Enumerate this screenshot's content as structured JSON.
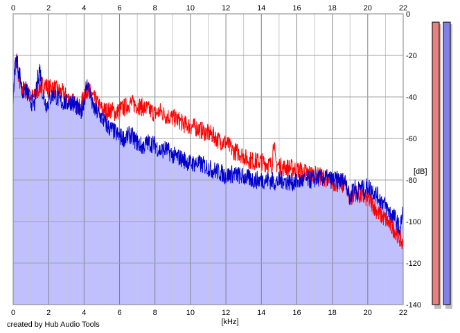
{
  "credit": "created by Hub Audio Tools",
  "chart_data": {
    "type": "line",
    "title": "",
    "xlabel": "[kHz]",
    "ylabel": "[dB]",
    "xlim": [
      0,
      22
    ],
    "ylim": [
      -140,
      0
    ],
    "x_ticks": [
      0,
      2,
      4,
      6,
      8,
      10,
      12,
      14,
      16,
      18,
      20,
      22
    ],
    "y_ticks": [
      0,
      -20,
      -40,
      -60,
      -80,
      -100,
      -120,
      -140
    ],
    "grid": true,
    "fill_color": "#c0c0ff",
    "series": [
      {
        "color": "#ff0000",
        "x": [
          0,
          0.1,
          0.2,
          0.3,
          0.4,
          0.5,
          0.7,
          1.0,
          1.2,
          1.5,
          1.8,
          2.0,
          2.2,
          2.5,
          2.8,
          3.0,
          3.3,
          3.6,
          3.8,
          4.0,
          4.2,
          4.5,
          4.8,
          5.0,
          5.3,
          5.5,
          5.8,
          6.0,
          6.3,
          6.6,
          7.0,
          7.3,
          7.6,
          8.0,
          8.3,
          8.6,
          9.0,
          9.3,
          9.6,
          10.0,
          10.4,
          10.8,
          11.2,
          11.6,
          12.0,
          12.4,
          12.8,
          13.2,
          13.6,
          14.0,
          14.3,
          14.6,
          14.7,
          14.8,
          15.2,
          15.6,
          16.0,
          16.4,
          16.8,
          17.2,
          17.6,
          18.0,
          18.4,
          18.8,
          19.0,
          19.3,
          19.6,
          20.0,
          20.3,
          20.6,
          21.0,
          21.3,
          21.6,
          21.8,
          22.0
        ],
        "y": [
          -40,
          -24,
          -22,
          -30,
          -34,
          -38,
          -37,
          -40,
          -40,
          -35,
          -34,
          -36,
          -35,
          -37,
          -38,
          -40,
          -42,
          -44,
          -46,
          -38,
          -36,
          -40,
          -44,
          -46,
          -47,
          -46,
          -48,
          -46,
          -45,
          -43,
          -44,
          -45,
          -46,
          -48,
          -47,
          -49,
          -50,
          -51,
          -53,
          -54,
          -55,
          -57,
          -58,
          -61,
          -62,
          -66,
          -67,
          -70,
          -71,
          -71,
          -72,
          -73,
          -60,
          -72,
          -74,
          -74,
          -75,
          -76,
          -77,
          -78,
          -79,
          -81,
          -82,
          -82,
          -90,
          -86,
          -88,
          -89,
          -92,
          -96,
          -99,
          -102,
          -105,
          -108,
          -112
        ]
      },
      {
        "color": "#0000cc",
        "x": [
          0,
          0.1,
          0.2,
          0.3,
          0.4,
          0.5,
          0.7,
          1.0,
          1.2,
          1.4,
          1.5,
          1.7,
          1.9,
          2.0,
          2.3,
          2.6,
          3.0,
          3.3,
          3.6,
          3.8,
          4.0,
          4.2,
          4.5,
          4.8,
          5.0,
          5.3,
          5.6,
          6.0,
          6.3,
          6.6,
          7.0,
          7.3,
          7.6,
          8.0,
          8.3,
          8.6,
          9.0,
          9.3,
          9.6,
          10.0,
          10.4,
          10.8,
          11.2,
          11.6,
          12.0,
          12.4,
          12.8,
          13.2,
          13.6,
          14.0,
          14.4,
          14.8,
          15.2,
          15.6,
          16.0,
          16.4,
          16.8,
          17.2,
          17.6,
          18.0,
          18.4,
          18.8,
          19.0,
          19.2,
          19.4,
          19.6,
          19.8,
          20.0,
          20.4,
          20.8,
          21.2,
          21.6,
          21.8,
          22.0
        ],
        "y": [
          -40,
          -26,
          -21,
          -27,
          -30,
          -38,
          -36,
          -42,
          -44,
          -30,
          -26,
          -40,
          -44,
          -42,
          -38,
          -42,
          -43,
          -42,
          -45,
          -48,
          -42,
          -33,
          -45,
          -48,
          -50,
          -54,
          -56,
          -59,
          -60,
          -58,
          -62,
          -64,
          -62,
          -63,
          -66,
          -65,
          -68,
          -69,
          -70,
          -72,
          -72,
          -73,
          -75,
          -76,
          -78,
          -77,
          -78,
          -79,
          -80,
          -80,
          -80,
          -81,
          -80,
          -81,
          -81,
          -80,
          -80,
          -79,
          -79,
          -80,
          -80,
          -81,
          -90,
          -82,
          -86,
          -83,
          -85,
          -83,
          -86,
          -90,
          -95,
          -99,
          -104,
          -95
        ]
      }
    ],
    "level_meters": [
      {
        "color": "#e88080"
      },
      {
        "color": "#8080e8"
      }
    ]
  }
}
